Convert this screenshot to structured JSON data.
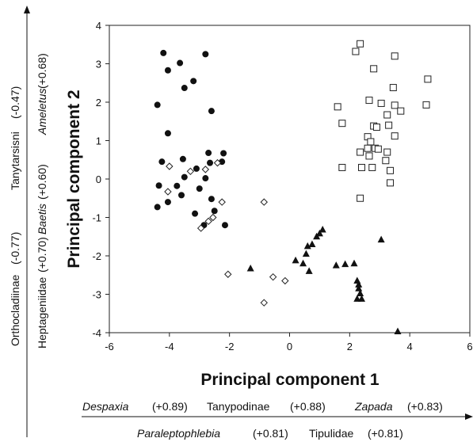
{
  "chart_data": {
    "type": "scatter",
    "title": "",
    "xlabel": "Principal component 1",
    "ylabel": "Principal component 2",
    "xlim": [
      -6,
      6
    ],
    "ylim": [
      -4,
      4
    ],
    "xticks": [
      "-6",
      "-4",
      "-2",
      "0",
      "2",
      "4",
      "6"
    ],
    "yticks": [
      "-4",
      "-3",
      "-2",
      "-1",
      "0",
      "1",
      "2",
      "3",
      "4"
    ],
    "grid": false,
    "series": [
      {
        "marker": "filled-circle",
        "points": [
          [
            -4.2,
            3.28
          ],
          [
            -2.8,
            3.25
          ],
          [
            -3.65,
            3.02
          ],
          [
            -4.05,
            2.83
          ],
          [
            -3.2,
            2.55
          ],
          [
            -3.5,
            2.37
          ],
          [
            -4.4,
            1.93
          ],
          [
            -2.6,
            1.77
          ],
          [
            -4.05,
            1.19
          ],
          [
            -3.55,
            0.52
          ],
          [
            -4.25,
            0.45
          ],
          [
            -2.7,
            0.68
          ],
          [
            -2.2,
            0.67
          ],
          [
            -2.65,
            0.42
          ],
          [
            -2.25,
            0.45
          ],
          [
            -3.1,
            0.27
          ],
          [
            -3.5,
            0.05
          ],
          [
            -2.8,
            0.02
          ],
          [
            -3.75,
            -0.18
          ],
          [
            -4.35,
            -0.17
          ],
          [
            -3.0,
            -0.25
          ],
          [
            -3.6,
            -0.42
          ],
          [
            -2.6,
            -0.52
          ],
          [
            -4.05,
            -0.6
          ],
          [
            -4.4,
            -0.73
          ],
          [
            -3.15,
            -0.9
          ],
          [
            -2.5,
            -0.83
          ],
          [
            -2.85,
            -1.2
          ],
          [
            -2.15,
            -1.2
          ]
        ]
      },
      {
        "marker": "open-diamond",
        "points": [
          [
            -4.0,
            0.33
          ],
          [
            -2.4,
            0.42
          ],
          [
            -2.8,
            0.25
          ],
          [
            -3.3,
            0.2
          ],
          [
            -4.05,
            -0.33
          ],
          [
            -2.25,
            -0.6
          ],
          [
            -2.55,
            -1.0
          ],
          [
            -2.7,
            -1.1
          ],
          [
            -2.95,
            -1.28
          ],
          [
            -0.85,
            -0.6
          ],
          [
            -2.05,
            -2.48
          ],
          [
            -0.55,
            -2.55
          ],
          [
            -0.15,
            -2.65
          ],
          [
            -0.85,
            -3.22
          ]
        ]
      },
      {
        "marker": "filled-triangle",
        "points": [
          [
            -1.3,
            -2.33
          ],
          [
            0.2,
            -2.12
          ],
          [
            0.45,
            -2.2
          ],
          [
            0.55,
            -1.95
          ],
          [
            0.6,
            -1.75
          ],
          [
            0.75,
            -1.7
          ],
          [
            0.9,
            -1.5
          ],
          [
            1.0,
            -1.42
          ],
          [
            1.1,
            -1.32
          ],
          [
            0.65,
            -2.4
          ],
          [
            1.85,
            -2.22
          ],
          [
            2.15,
            -2.2
          ],
          [
            1.55,
            -2.25
          ],
          [
            2.25,
            -2.65
          ],
          [
            2.3,
            -2.75
          ],
          [
            2.3,
            -2.85
          ],
          [
            2.35,
            -2.98
          ],
          [
            2.25,
            -3.12
          ],
          [
            2.4,
            -3.12
          ],
          [
            3.05,
            -1.58
          ],
          [
            3.6,
            -3.97
          ]
        ]
      },
      {
        "marker": "open-square",
        "points": [
          [
            2.35,
            3.52
          ],
          [
            2.2,
            3.32
          ],
          [
            3.5,
            3.2
          ],
          [
            2.8,
            2.87
          ],
          [
            4.6,
            2.6
          ],
          [
            3.45,
            2.38
          ],
          [
            1.6,
            1.88
          ],
          [
            2.65,
            2.05
          ],
          [
            3.05,
            1.97
          ],
          [
            3.5,
            1.92
          ],
          [
            4.55,
            1.93
          ],
          [
            3.7,
            1.77
          ],
          [
            3.25,
            1.67
          ],
          [
            1.75,
            1.45
          ],
          [
            2.8,
            1.38
          ],
          [
            2.9,
            1.35
          ],
          [
            3.3,
            1.4
          ],
          [
            2.6,
            1.1
          ],
          [
            2.7,
            0.97
          ],
          [
            3.5,
            1.12
          ],
          [
            2.6,
            0.8
          ],
          [
            2.85,
            0.8
          ],
          [
            2.95,
            0.78
          ],
          [
            2.35,
            0.7
          ],
          [
            3.25,
            0.7
          ],
          [
            2.65,
            0.6
          ],
          [
            3.2,
            0.48
          ],
          [
            1.75,
            0.3
          ],
          [
            2.4,
            0.3
          ],
          [
            2.75,
            0.3
          ],
          [
            3.35,
            0.22
          ],
          [
            3.35,
            -0.1
          ],
          [
            2.35,
            -0.5
          ]
        ]
      }
    ],
    "loadings_x": {
      "row1": [
        {
          "name": "Despaxia",
          "italic": true,
          "value": "(+0.89)"
        },
        {
          "name": "Tanypodinae",
          "italic": false,
          "value": "(+0.88)"
        },
        {
          "name": "Zapada",
          "italic": true,
          "value": "(+0.83)"
        }
      ],
      "row2": [
        {
          "name": "Paraleptophlebia",
          "italic": true,
          "value": "(+0.81)"
        },
        {
          "name": "Tipulidae",
          "italic": false,
          "value": "(+0.81)"
        }
      ]
    },
    "loadings_y": {
      "col1": [
        {
          "name": "Orthocladiinae",
          "italic": false,
          "value": "(-0.77)"
        },
        {
          "name": "Tanytarsisni",
          "italic": false,
          "value": "(-0.47)"
        }
      ],
      "col2": [
        {
          "name": "Heptageniidae",
          "italic": false,
          "value": "(+0.70)"
        },
        {
          "name": "Baetis",
          "italic": true,
          "value": "(+0.60)"
        },
        {
          "name": "Ameletus",
          "italic": true,
          "value": "(+0.68)"
        }
      ]
    }
  }
}
